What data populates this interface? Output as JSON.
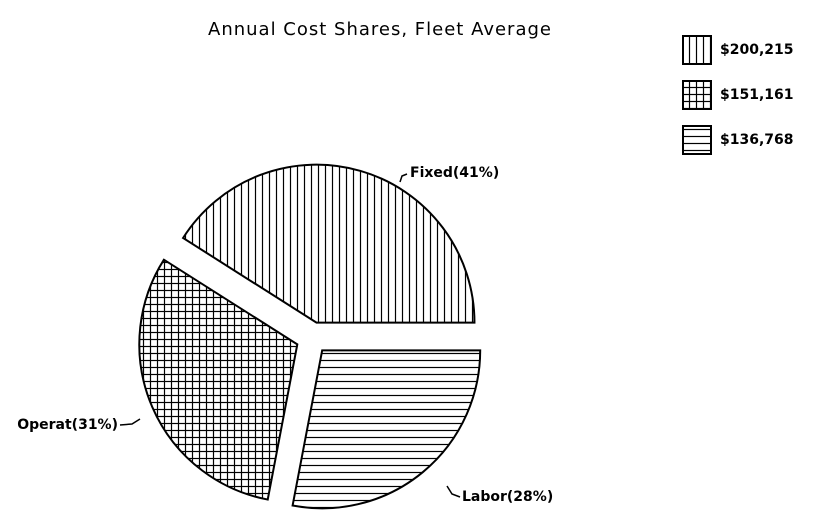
{
  "chart_data": {
    "type": "pie",
    "title": "Annual Cost Shares, Fleet Average",
    "categories": [
      "Fixed",
      "Operat",
      "Labor"
    ],
    "values": [
      41,
      31,
      28
    ],
    "value_labels": [
      "Fixed(41%)",
      "Operat(31%)",
      "Labor(28%)"
    ],
    "amounts": [
      200215,
      151161,
      136768
    ],
    "amount_labels": [
      "$200,215",
      "$151,161",
      "$136,768"
    ],
    "color": "#000000"
  }
}
